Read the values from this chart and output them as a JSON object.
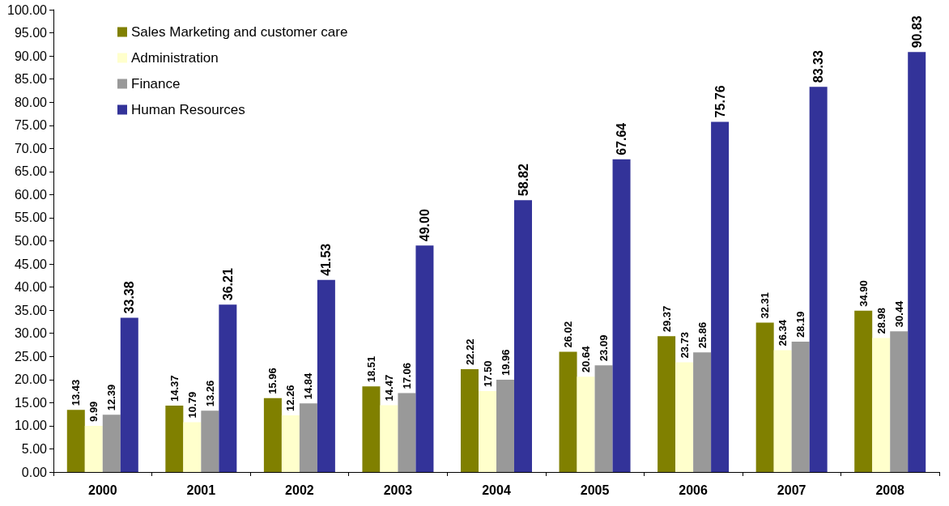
{
  "chart_data": {
    "type": "bar",
    "categories": [
      "2000",
      "2001",
      "2002",
      "2003",
      "2004",
      "2005",
      "2006",
      "2007",
      "2008"
    ],
    "series": [
      {
        "name": "Sales Marketing and customer care",
        "color": "#808000",
        "values": [
          13.43,
          14.37,
          15.96,
          18.51,
          22.22,
          26.02,
          29.37,
          32.31,
          34.9
        ],
        "value_labels": [
          "13.43",
          "14.37",
          "15.96",
          "18.51",
          "22.22",
          "26.02",
          "29.37",
          "32.31",
          "34.90"
        ]
      },
      {
        "name": "Administration",
        "color": "#ffffcc",
        "values": [
          9.99,
          10.79,
          12.26,
          14.47,
          17.5,
          20.64,
          23.73,
          26.34,
          28.98
        ],
        "value_labels": [
          "9.99",
          "10.79",
          "12.26",
          "14.47",
          "17.50",
          "20.64",
          "23.73",
          "26.34",
          "28.98"
        ]
      },
      {
        "name": "Finance",
        "color": "#999999",
        "values": [
          12.39,
          13.26,
          14.84,
          17.06,
          19.96,
          23.09,
          25.86,
          28.19,
          30.44
        ],
        "value_labels": [
          "12.39",
          "13.26",
          "14.84",
          "17.06",
          "19.96",
          "23.09",
          "25.86",
          "28.19",
          "30.44"
        ]
      },
      {
        "name": "Human Resources",
        "color": "#333399",
        "values": [
          33.38,
          36.21,
          41.53,
          49.0,
          58.82,
          67.64,
          75.76,
          83.33,
          90.83
        ],
        "value_labels": [
          "33.38",
          "36.21",
          "41.53",
          "49.00",
          "58.82",
          "67.64",
          "75.76",
          "83.33",
          "90.83"
        ]
      }
    ],
    "ylim": [
      0,
      100
    ],
    "yticks": [
      {
        "value": 0,
        "label": "0.00"
      },
      {
        "value": 5,
        "label": "5.00"
      },
      {
        "value": 10,
        "label": "10.00"
      },
      {
        "value": 15,
        "label": "15.00"
      },
      {
        "value": 20,
        "label": "20.00"
      },
      {
        "value": 25,
        "label": "25.00"
      },
      {
        "value": 30,
        "label": "30.00"
      },
      {
        "value": 35,
        "label": "35.00"
      },
      {
        "value": 40,
        "label": "40.00"
      },
      {
        "value": 45,
        "label": "45.00"
      },
      {
        "value": 50,
        "label": "50.00"
      },
      {
        "value": 55,
        "label": "55.00"
      },
      {
        "value": 60,
        "label": "60.00"
      },
      {
        "value": 65,
        "label": "65.00"
      },
      {
        "value": 70,
        "label": "70.00"
      },
      {
        "value": 75,
        "label": "75.00"
      },
      {
        "value": 80,
        "label": "80.00"
      },
      {
        "value": 85,
        "label": "85.00"
      },
      {
        "value": 90,
        "label": "90.00"
      },
      {
        "value": 95,
        "label": "95.00"
      },
      {
        "value": 100,
        "label": "100.00"
      }
    ],
    "grid": false,
    "legend": "top left"
  }
}
